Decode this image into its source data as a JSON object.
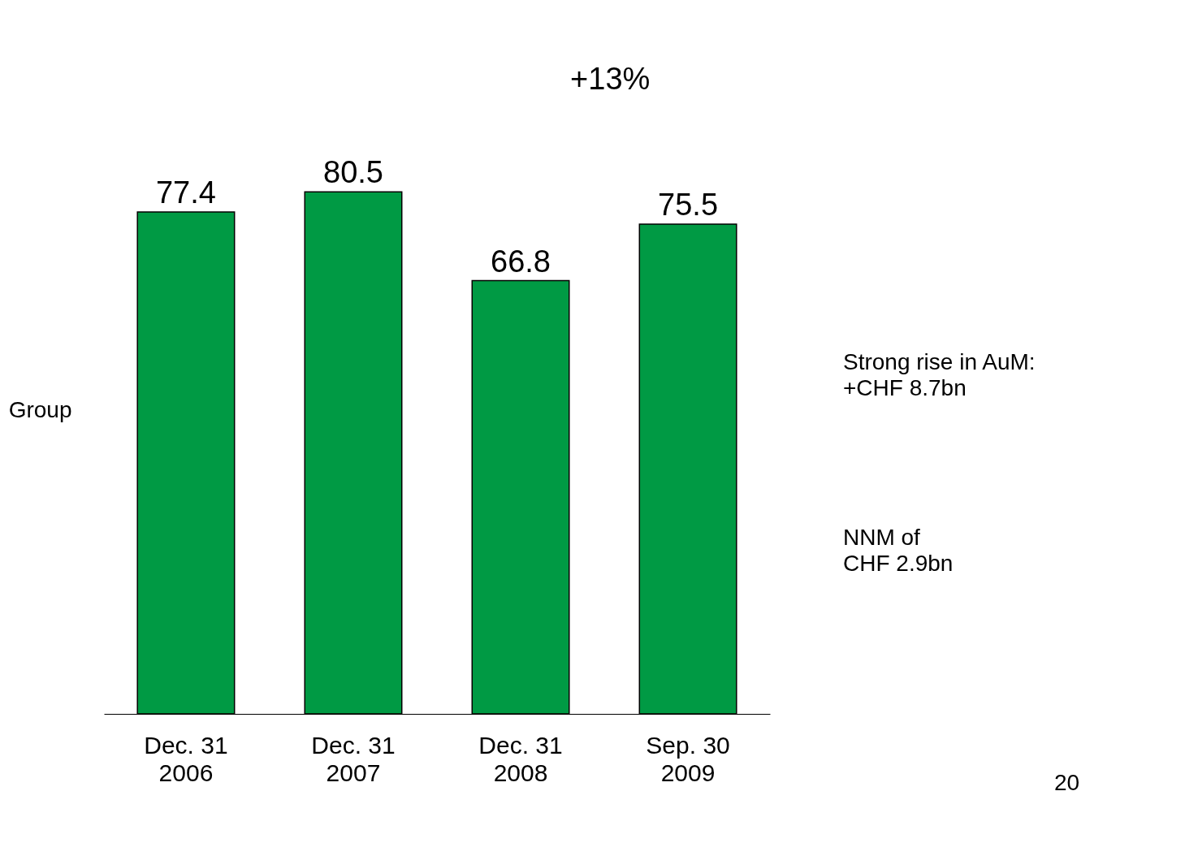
{
  "chart_data": {
    "type": "bar",
    "categories": [
      "Dec. 31\n2006",
      "Dec. 31\n2007",
      "Dec. 31\n2008",
      "Sep. 30\n2009"
    ],
    "values": [
      77.4,
      80.5,
      66.8,
      75.5
    ],
    "color": "#009a44",
    "data_labels": true,
    "ylabel": "Group",
    "tick_labels": "x",
    "grid": false,
    "annotations": [
      "+13%",
      "Strong rise in AuM:\n+CHF 8.7bn",
      "NNM of\nCHF 2.9bn",
      "20"
    ]
  }
}
